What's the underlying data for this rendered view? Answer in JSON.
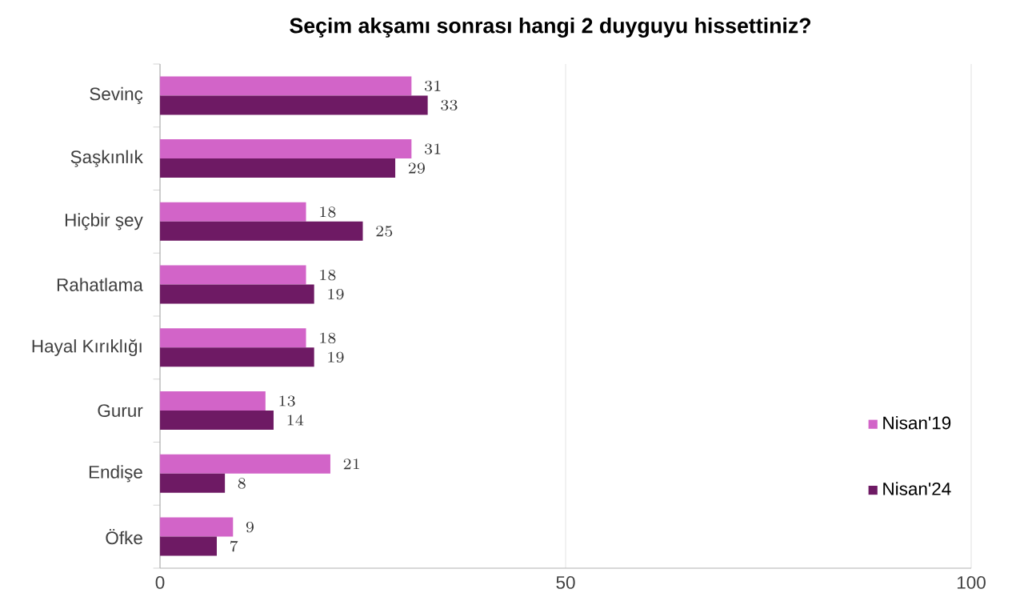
{
  "chart_data": {
    "type": "bar",
    "orientation": "horizontal",
    "title": "Seçim akşamı sonrası hangi 2 duyguyu hissettiniz?",
    "categories": [
      "Sevinç",
      "Şaşkınlık",
      "Hiçbir şey",
      "Rahatlama",
      "Hayal Kırıklığı",
      "Gurur",
      "Endişe",
      "Öfke"
    ],
    "series": [
      {
        "name": "Nisan'19",
        "color": "#d264c8",
        "values": [
          31,
          31,
          18,
          18,
          18,
          13,
          21,
          9
        ]
      },
      {
        "name": "Nisan'24",
        "color": "#6e1a64",
        "values": [
          33,
          29,
          25,
          19,
          19,
          14,
          8,
          7
        ]
      }
    ],
    "xlim": [
      0,
      100
    ],
    "xticks": [
      0,
      50,
      100
    ],
    "grid": "x",
    "legend": "right",
    "data_labels": true
  }
}
